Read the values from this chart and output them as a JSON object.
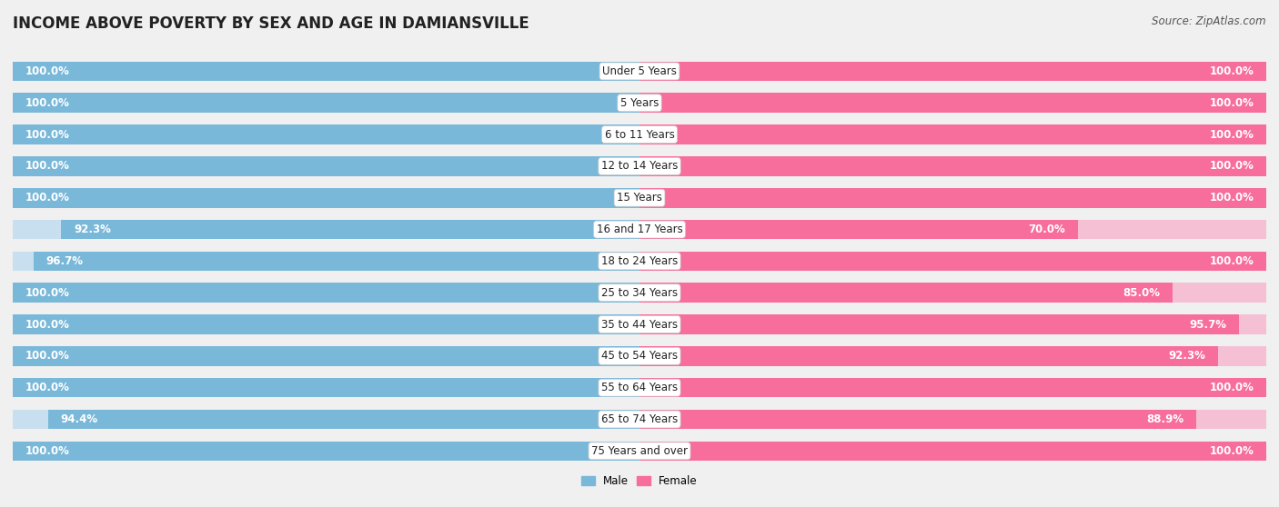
{
  "title": "INCOME ABOVE POVERTY BY SEX AND AGE IN DAMIANSVILLE",
  "source": "Source: ZipAtlas.com",
  "categories": [
    "Under 5 Years",
    "5 Years",
    "6 to 11 Years",
    "12 to 14 Years",
    "15 Years",
    "16 and 17 Years",
    "18 to 24 Years",
    "25 to 34 Years",
    "35 to 44 Years",
    "45 to 54 Years",
    "55 to 64 Years",
    "65 to 74 Years",
    "75 Years and over"
  ],
  "male_values": [
    100.0,
    100.0,
    100.0,
    100.0,
    100.0,
    92.3,
    96.7,
    100.0,
    100.0,
    100.0,
    100.0,
    94.4,
    100.0
  ],
  "female_values": [
    100.0,
    100.0,
    100.0,
    100.0,
    100.0,
    70.0,
    100.0,
    85.0,
    95.7,
    92.3,
    100.0,
    88.9,
    100.0
  ],
  "male_color": "#7ab8d9",
  "female_color": "#f76d9c",
  "male_bg_color": "#c8dff0",
  "female_bg_color": "#f5c0d4",
  "bar_height": 0.62,
  "bg_color": "#f0f0f0",
  "title_fontsize": 12,
  "label_fontsize": 8.5,
  "category_fontsize": 8.5,
  "source_fontsize": 8.5
}
